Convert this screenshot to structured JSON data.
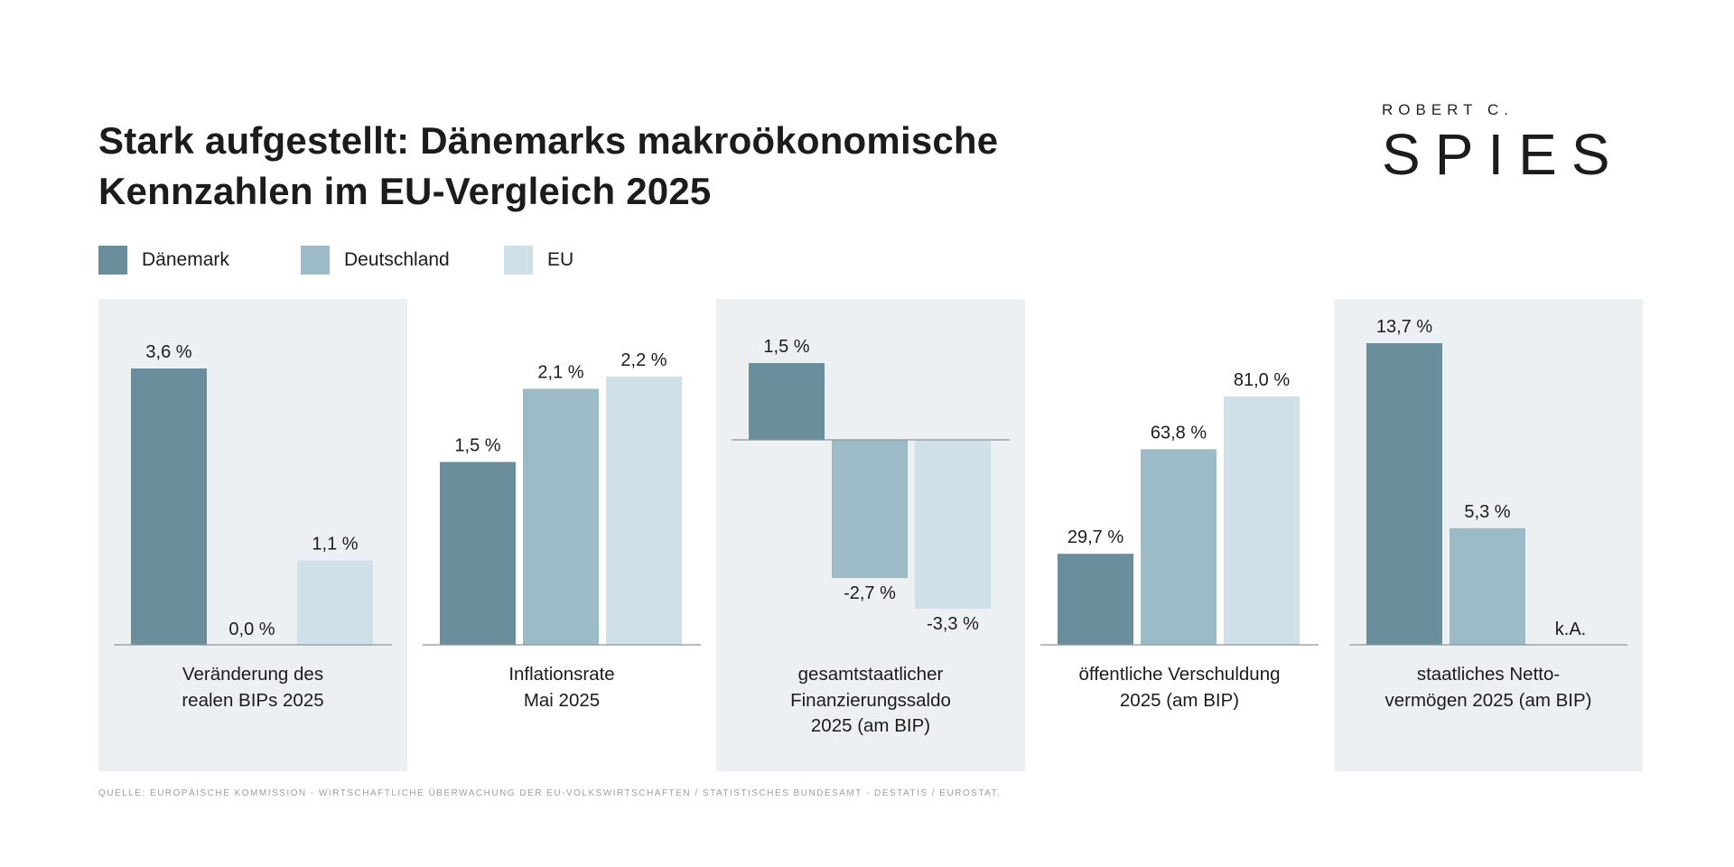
{
  "title_lines": [
    "Stark aufgestellt: Dänemarks makroökonomische",
    "Kennzahlen im EU-Vergleich 2025"
  ],
  "logo": {
    "small": "ROBERT C.",
    "big": "SPIES"
  },
  "legend": [
    {
      "label": "Dänemark",
      "color": "#6b8e9c"
    },
    {
      "label": "Deutschland",
      "color": "#9dbbc7"
    },
    {
      "label": "EU",
      "color": "#cfe0e8"
    }
  ],
  "colors": {
    "panel_shade": "#edf0f3",
    "baseline": "#8c9499",
    "text": "#1c1c1c"
  },
  "chart_data": [
    {
      "type": "bar",
      "caption": [
        "Veränderung des",
        "realen BIPs 2025"
      ],
      "shaded": true,
      "categories": [
        "Dänemark",
        "Deutschland",
        "EU"
      ],
      "values": [
        3.6,
        0.0,
        1.1
      ],
      "labels": [
        "3,6 %",
        "0,0 %",
        "1,1 %"
      ],
      "unit": "%"
    },
    {
      "type": "bar",
      "caption": [
        "Inflationsrate",
        "Mai 2025"
      ],
      "shaded": false,
      "categories": [
        "Dänemark",
        "Deutschland",
        "EU"
      ],
      "values": [
        1.5,
        2.1,
        2.2
      ],
      "labels": [
        "1,5 %",
        "2,1 %",
        "2,2 %"
      ],
      "unit": "%"
    },
    {
      "type": "bar",
      "caption": [
        "gesamtstaatlicher",
        "Finanzierungssaldo",
        "2025 (am BIP)"
      ],
      "shaded": true,
      "categories": [
        "Dänemark",
        "Deutschland",
        "EU"
      ],
      "values": [
        1.5,
        -2.7,
        -3.3
      ],
      "labels": [
        "1,5 %",
        "-2,7 %",
        "-3,3 %"
      ],
      "unit": "%"
    },
    {
      "type": "bar",
      "caption": [
        "öffentliche Verschuldung",
        "2025 (am BIP)"
      ],
      "shaded": false,
      "categories": [
        "Dänemark",
        "Deutschland",
        "EU"
      ],
      "values": [
        29.7,
        63.8,
        81.0
      ],
      "labels": [
        "29,7 %",
        "63,8 %",
        "81,0 %"
      ],
      "unit": "%"
    },
    {
      "type": "bar",
      "caption": [
        "staatliches Netto-",
        "vermögen 2025 (am BIP)"
      ],
      "shaded": true,
      "categories": [
        "Dänemark",
        "Deutschland",
        "EU"
      ],
      "values": [
        13.7,
        5.3,
        null
      ],
      "labels": [
        "13,7 %",
        "5,3 %",
        "k.A."
      ],
      "unit": "%"
    }
  ],
  "source": "QUELLE: EUROPÄISCHE KOMMISSION - WIRTSCHAFTLICHE ÜBERWACHUNG DER EU-VOLKSWIRTSCHAFTEN / STATISTISCHES BUNDESAMT - DESTATIS  / EUROSTAT."
}
